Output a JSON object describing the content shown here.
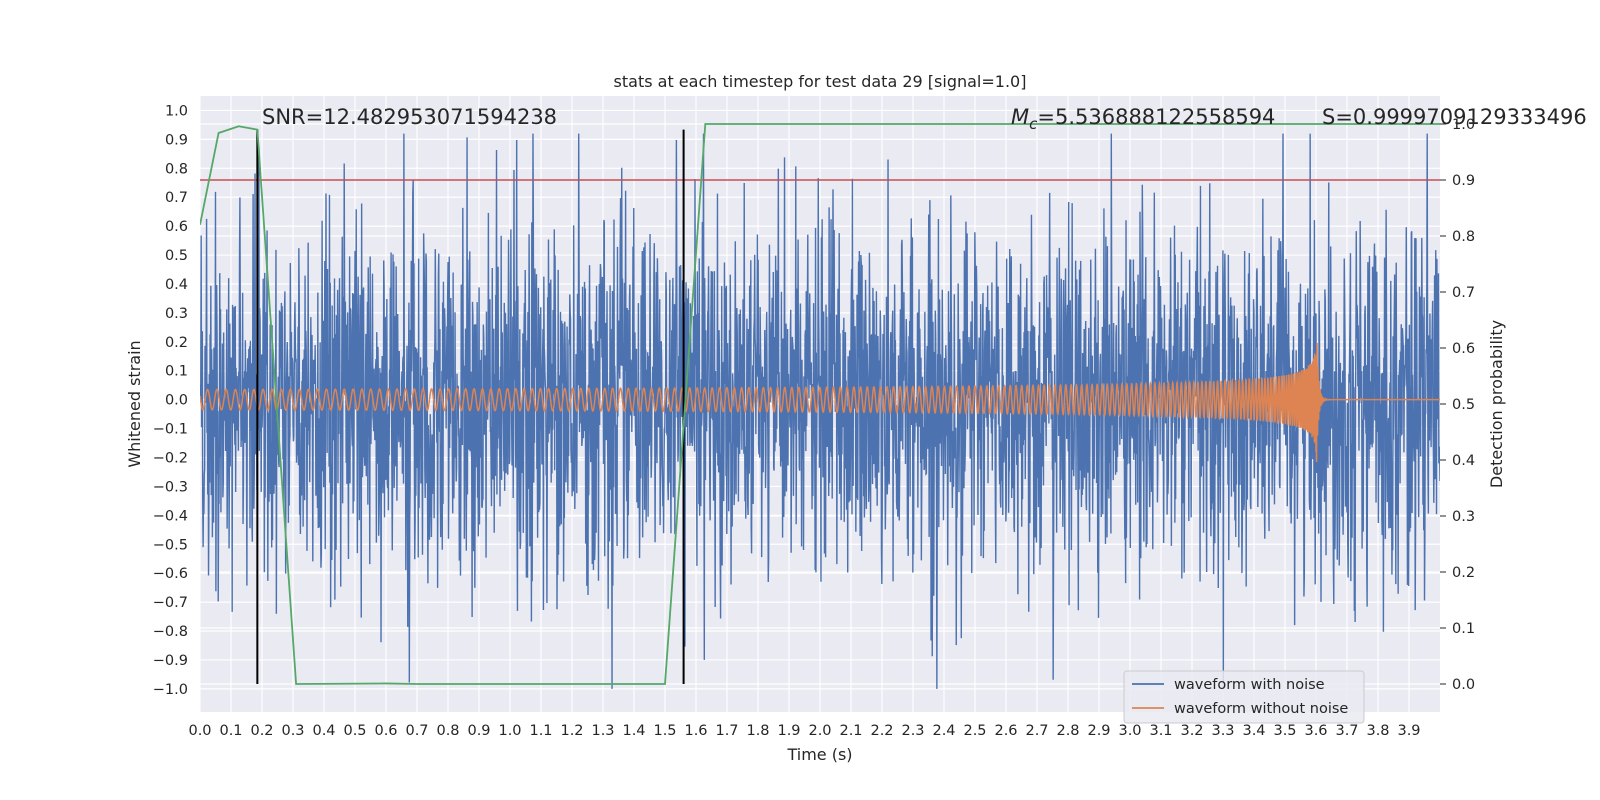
{
  "chart_data": {
    "type": "line",
    "title": "stats at each timestep for test data 29 [signal=1.0]",
    "xlabel": "Time (s)",
    "ylabel": "Whitened strain",
    "y2label": "Detection probability",
    "xlim": [
      0.0,
      4.0
    ],
    "ylim": [
      -1.08,
      1.05
    ],
    "y2lim": [
      -0.05,
      1.05
    ],
    "x_ticks": [
      "0.0",
      "0.1",
      "0.2",
      "0.3",
      "0.4",
      "0.5",
      "0.6",
      "0.7",
      "0.8",
      "0.9",
      "1.0",
      "1.1",
      "1.2",
      "1.3",
      "1.4",
      "1.5",
      "1.6",
      "1.7",
      "1.8",
      "1.9",
      "2.0",
      "2.1",
      "2.2",
      "2.3",
      "2.4",
      "2.5",
      "2.6",
      "2.7",
      "2.8",
      "2.9",
      "3.0",
      "3.1",
      "3.2",
      "3.3",
      "3.4",
      "3.5",
      "3.6",
      "3.7",
      "3.8",
      "3.9"
    ],
    "y_ticks": [
      "1.0",
      "0.9",
      "0.8",
      "0.7",
      "0.6",
      "0.5",
      "0.4",
      "0.3",
      "0.2",
      "0.1",
      "0.0",
      "−0.1",
      "−0.2",
      "−0.3",
      "−0.4",
      "−0.5",
      "−0.6",
      "−0.7",
      "−0.8",
      "−0.9",
      "−1.0"
    ],
    "y2_ticks": [
      "1.0",
      "0.9",
      "0.8",
      "0.7",
      "0.6",
      "0.5",
      "0.4",
      "0.3",
      "0.2",
      "0.1",
      "0.0"
    ],
    "grid": true,
    "legend_position": "lower-right",
    "series": [
      {
        "name": "waveform with noise",
        "color": "#4c72b0",
        "axis": "left",
        "kind": "noise",
        "approx_spread": 0.3,
        "approx_peak_range": [
          -1.0,
          0.92
        ]
      },
      {
        "name": "waveform without noise",
        "color": "#dd8452",
        "axis": "left",
        "kind": "chirp",
        "amplitude_at_start": 0.035,
        "amplitude_at_merger": 0.34,
        "merger_time": 3.6,
        "end_time": 4.0
      },
      {
        "name": "",
        "color": "#55a868",
        "axis": "right",
        "kind": "probability",
        "x": [
          0.0,
          0.06,
          0.125,
          0.185,
          0.31,
          0.6,
          0.7,
          1.0,
          1.5,
          1.63,
          4.0
        ],
        "y": [
          0.82,
          0.984,
          0.996,
          0.99,
          0.0,
          0.001,
          0.0,
          0.0,
          0.0,
          1.0,
          1.0
        ]
      }
    ],
    "threshold": {
      "value": 0.9,
      "axis": "right",
      "color": "#c44e52"
    },
    "markers": [
      {
        "x": 0.185,
        "color": "#000000"
      },
      {
        "x": 1.56,
        "color": "#000000"
      }
    ],
    "annotations": {
      "snr": "SNR=12.482953071594238",
      "mc_symbol": "M",
      "mc_subscript": "c",
      "mc_value": "=5.536888122558594",
      "s": "S=0.9999709129333496"
    }
  }
}
